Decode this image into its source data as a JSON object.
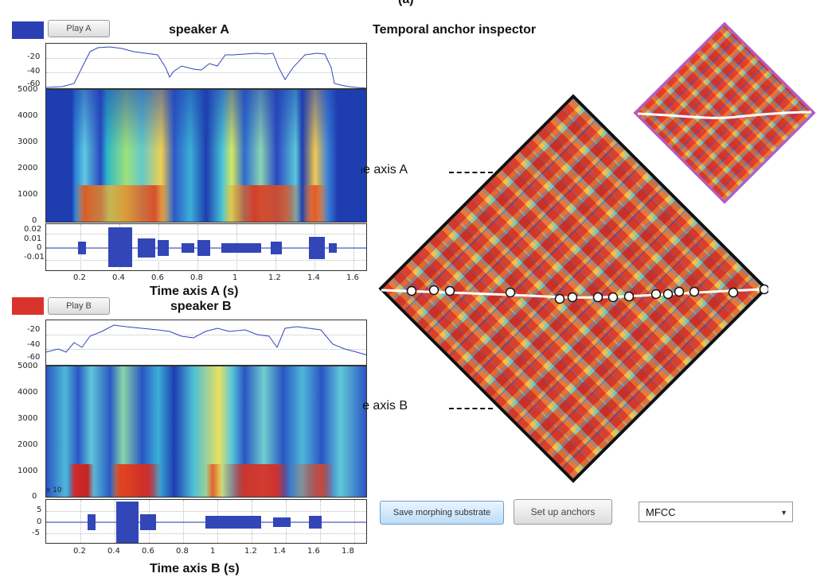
{
  "header": {
    "partial_label": "(a)"
  },
  "speaker_a": {
    "color": "#2b3fb5",
    "play_label": "Play A",
    "title": "speaker A",
    "level_ticks": [
      "-20",
      "-40",
      "-60"
    ],
    "freq_ticks": [
      "5000",
      "4000",
      "3000",
      "2000",
      "1000",
      "0"
    ],
    "wave_ticks": [
      "0.02",
      "0.01",
      "0",
      "-0.01"
    ],
    "time_ticks": [
      "0.2",
      "0.4",
      "0.6",
      "0.8",
      "1",
      "1.2",
      "1.4",
      "1.6"
    ],
    "xlabel": "Time axis A (s)"
  },
  "speaker_b": {
    "color": "#d9342b",
    "play_label": "Play B",
    "title": "speaker B",
    "level_ticks": [
      "-20",
      "-40",
      "-60"
    ],
    "freq_ticks": [
      "5000",
      "4000",
      "3000",
      "2000",
      "1000",
      "0"
    ],
    "wave_exponent": "x 10",
    "wave_ticks": [
      "5",
      "0",
      "-5"
    ],
    "time_ticks": [
      "0.2",
      "0.4",
      "0.6",
      "0.8",
      "1",
      "1.2",
      "1.4",
      "1.6",
      "1.8"
    ],
    "xlabel": "Time axis B (s)"
  },
  "inspector": {
    "title": "Temporal anchor inspector",
    "axis_a_label": "Time axis A",
    "axis_b_label": "Time axis B",
    "anchor_count": 20
  },
  "controls": {
    "save_label": "Save morphing substrate",
    "setup_label": "Set up anchors",
    "feature_value": "MFCC"
  }
}
